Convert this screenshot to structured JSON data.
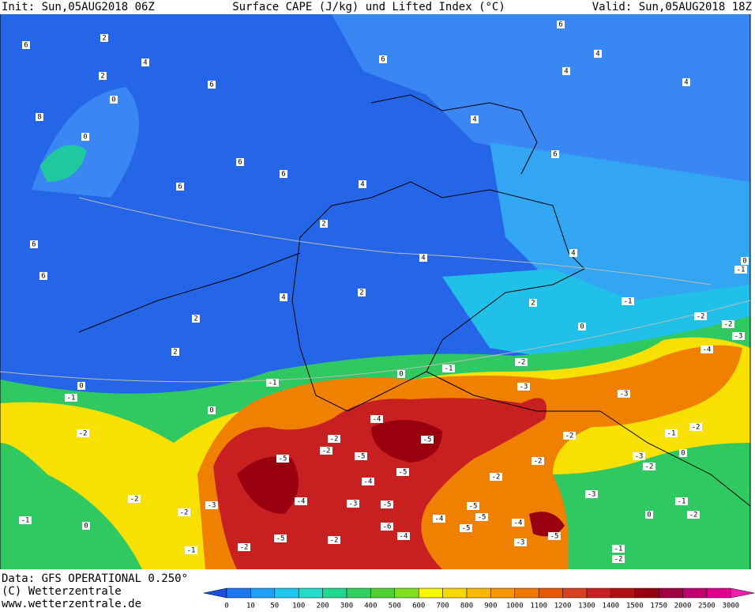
{
  "header": {
    "init": "Init: Sun,05AUG2018 06Z",
    "title": "Surface CAPE (J/kg) und Lifted Index (°C)",
    "valid": "Valid: Sun,05AUG2018 18Z"
  },
  "footer": {
    "data": "Data: GFS OPERATIONAL 0.250°",
    "copyright": "(C) Wetterzentrale",
    "url": "www.wetterzentrale.de"
  },
  "colorbar": {
    "labels": [
      0,
      10,
      50,
      100,
      200,
      300,
      400,
      500,
      600,
      700,
      800,
      900,
      1000,
      1100,
      1200,
      1300,
      1400,
      1500,
      1750,
      2000,
      2500,
      3000
    ],
    "colors": [
      "#1a4fe0",
      "#1c78f0",
      "#20a0f5",
      "#20c8f0",
      "#20dcc8",
      "#20d890",
      "#30d060",
      "#50d030",
      "#80e020",
      "#f8f800",
      "#f8d800",
      "#f8b800",
      "#f89800",
      "#f07800",
      "#e85800",
      "#d84020",
      "#c82020",
      "#b01010",
      "#980010",
      "#a00040",
      "#c00070",
      "#e00090",
      "#f020b0"
    ]
  },
  "contour_labels": [
    2,
    6,
    4,
    2,
    0,
    8,
    0,
    6,
    6,
    6,
    4,
    4,
    4,
    4,
    6,
    6,
    6,
    6,
    4,
    2,
    6,
    6,
    4,
    4,
    0,
    -1,
    4,
    2,
    2,
    -1,
    2,
    0,
    -2,
    -2,
    -3,
    -4,
    2,
    -1,
    -2,
    0,
    -1,
    0,
    -1,
    0,
    -3,
    -3,
    -4,
    -2,
    -2,
    -5,
    -2,
    -2,
    -5,
    -5,
    -1,
    -2,
    -3,
    0,
    -4,
    -5,
    -2,
    -2,
    -2,
    -2,
    -4,
    -3,
    -5,
    -5,
    -3,
    -3,
    -2,
    -1,
    0,
    -5,
    -4,
    -4,
    -6,
    -5,
    -5,
    -1,
    -2,
    0,
    -5,
    -4,
    -2,
    -3,
    -1,
    -2,
    -1,
    -2
  ]
}
